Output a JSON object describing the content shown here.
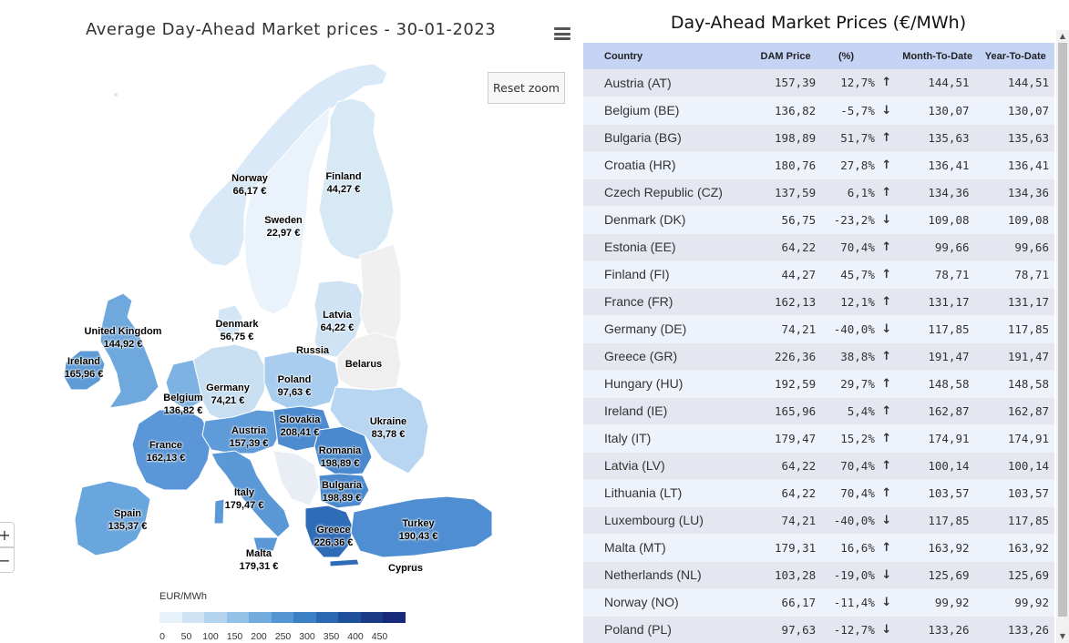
{
  "map": {
    "title": "Average Day-Ahead Market prices - 30-01-2023",
    "reset_zoom_label": "Reset zoom",
    "zoom_in_label": "+",
    "zoom_out_label": "−",
    "labels": [
      {
        "name": "Norway",
        "value": "66,17 €"
      },
      {
        "name": "Finland",
        "value": "44,27 €"
      },
      {
        "name": "Sweden",
        "value": "22,97 €"
      },
      {
        "name": "Latvia",
        "value": "64,22 €"
      },
      {
        "name": "United Kingdom",
        "value": "144,92 €"
      },
      {
        "name": "Denmark",
        "value": "56,75 €"
      },
      {
        "name": "Russia",
        "value": ""
      },
      {
        "name": "Ireland",
        "value": "165,96 €"
      },
      {
        "name": "Belarus",
        "value": ""
      },
      {
        "name": "Poland",
        "value": "97,63 €"
      },
      {
        "name": "Germany",
        "value": "74,21 €"
      },
      {
        "name": "Belgium",
        "value": "136,82 €"
      },
      {
        "name": "Ukraine",
        "value": "83,78 €"
      },
      {
        "name": "Slovakia",
        "value": "208,41 €"
      },
      {
        "name": "Austria",
        "value": "157,39 €"
      },
      {
        "name": "France",
        "value": "162,13 €"
      },
      {
        "name": "Romania",
        "value": "198,89 €"
      },
      {
        "name": "Bulgaria",
        "value": "198,89 €"
      },
      {
        "name": "Italy",
        "value": "179,47 €"
      },
      {
        "name": "Spain",
        "value": "135,37 €"
      },
      {
        "name": "Turkey",
        "value": "190,43 €"
      },
      {
        "name": "Greece",
        "value": "226,36 €"
      },
      {
        "name": "Malta",
        "value": "179,31 €"
      },
      {
        "name": "Cyprus",
        "value": ""
      }
    ],
    "legend": {
      "title": "EUR/MWh",
      "ticks": [
        "0",
        "50",
        "100",
        "150",
        "200",
        "250",
        "300",
        "350",
        "400",
        "450"
      ],
      "colors": [
        "#e8f2fb",
        "#cfe3f5",
        "#b3d3ef",
        "#94c1e8",
        "#72acdf",
        "#5496d3",
        "#3b7fc4",
        "#2a68b2",
        "#1f509c",
        "#1a3c86",
        "#16297a"
      ]
    }
  },
  "table": {
    "title": "Day-Ahead Market Prices (€/MWh)",
    "headers": {
      "country": "Country",
      "dam": "DAM Price",
      "pct": "(%)",
      "mtd": "Month-To-Date",
      "ytd": "Year-To-Date"
    },
    "rows": [
      {
        "country": "Austria (AT)",
        "dam": "157,39",
        "pct": "12,7%",
        "dir": "up",
        "mtd": "144,51",
        "ytd": "144,51"
      },
      {
        "country": "Belgium (BE)",
        "dam": "136,82",
        "pct": "-5,7%",
        "dir": "down",
        "mtd": "130,07",
        "ytd": "130,07"
      },
      {
        "country": "Bulgaria (BG)",
        "dam": "198,89",
        "pct": "51,7%",
        "dir": "up",
        "mtd": "135,63",
        "ytd": "135,63"
      },
      {
        "country": "Croatia (HR)",
        "dam": "180,76",
        "pct": "27,8%",
        "dir": "up",
        "mtd": "136,41",
        "ytd": "136,41"
      },
      {
        "country": "Czech Republic (CZ)",
        "dam": "137,59",
        "pct": "6,1%",
        "dir": "up",
        "mtd": "134,36",
        "ytd": "134,36"
      },
      {
        "country": "Denmark (DK)",
        "dam": "56,75",
        "pct": "-23,2%",
        "dir": "down",
        "mtd": "109,08",
        "ytd": "109,08"
      },
      {
        "country": "Estonia (EE)",
        "dam": "64,22",
        "pct": "70,4%",
        "dir": "up",
        "mtd": "99,66",
        "ytd": "99,66"
      },
      {
        "country": "Finland (FI)",
        "dam": "44,27",
        "pct": "45,7%",
        "dir": "up",
        "mtd": "78,71",
        "ytd": "78,71"
      },
      {
        "country": "France (FR)",
        "dam": "162,13",
        "pct": "12,1%",
        "dir": "up",
        "mtd": "131,17",
        "ytd": "131,17"
      },
      {
        "country": "Germany (DE)",
        "dam": "74,21",
        "pct": "-40,0%",
        "dir": "down",
        "mtd": "117,85",
        "ytd": "117,85"
      },
      {
        "country": "Greece (GR)",
        "dam": "226,36",
        "pct": "38,8%",
        "dir": "up",
        "mtd": "191,47",
        "ytd": "191,47"
      },
      {
        "country": "Hungary (HU)",
        "dam": "192,59",
        "pct": "29,7%",
        "dir": "up",
        "mtd": "148,58",
        "ytd": "148,58"
      },
      {
        "country": "Ireland (IE)",
        "dam": "165,96",
        "pct": "5,4%",
        "dir": "up",
        "mtd": "162,87",
        "ytd": "162,87"
      },
      {
        "country": "Italy (IT)",
        "dam": "179,47",
        "pct": "15,2%",
        "dir": "up",
        "mtd": "174,91",
        "ytd": "174,91"
      },
      {
        "country": "Latvia (LV)",
        "dam": "64,22",
        "pct": "70,4%",
        "dir": "up",
        "mtd": "100,14",
        "ytd": "100,14"
      },
      {
        "country": "Lithuania (LT)",
        "dam": "64,22",
        "pct": "70,4%",
        "dir": "up",
        "mtd": "103,57",
        "ytd": "103,57"
      },
      {
        "country": "Luxembourg (LU)",
        "dam": "74,21",
        "pct": "-40,0%",
        "dir": "down",
        "mtd": "117,85",
        "ytd": "117,85"
      },
      {
        "country": "Malta (MT)",
        "dam": "179,31",
        "pct": "16,6%",
        "dir": "up",
        "mtd": "163,92",
        "ytd": "163,92"
      },
      {
        "country": "Netherlands (NL)",
        "dam": "103,28",
        "pct": "-19,0%",
        "dir": "down",
        "mtd": "125,69",
        "ytd": "125,69"
      },
      {
        "country": "Norway (NO)",
        "dam": "66,17",
        "pct": "-11,4%",
        "dir": "down",
        "mtd": "99,92",
        "ytd": "99,92"
      },
      {
        "country": "Poland (PL)",
        "dam": "97,63",
        "pct": "-12,7%",
        "dir": "down",
        "mtd": "133,26",
        "ytd": "133,26"
      }
    ],
    "arrows": {
      "up": "↑",
      "down": "↓"
    },
    "colors": {
      "up": "#1b8a2d",
      "down": "#e03b2f",
      "header_bg": "#c5d3f5"
    }
  }
}
